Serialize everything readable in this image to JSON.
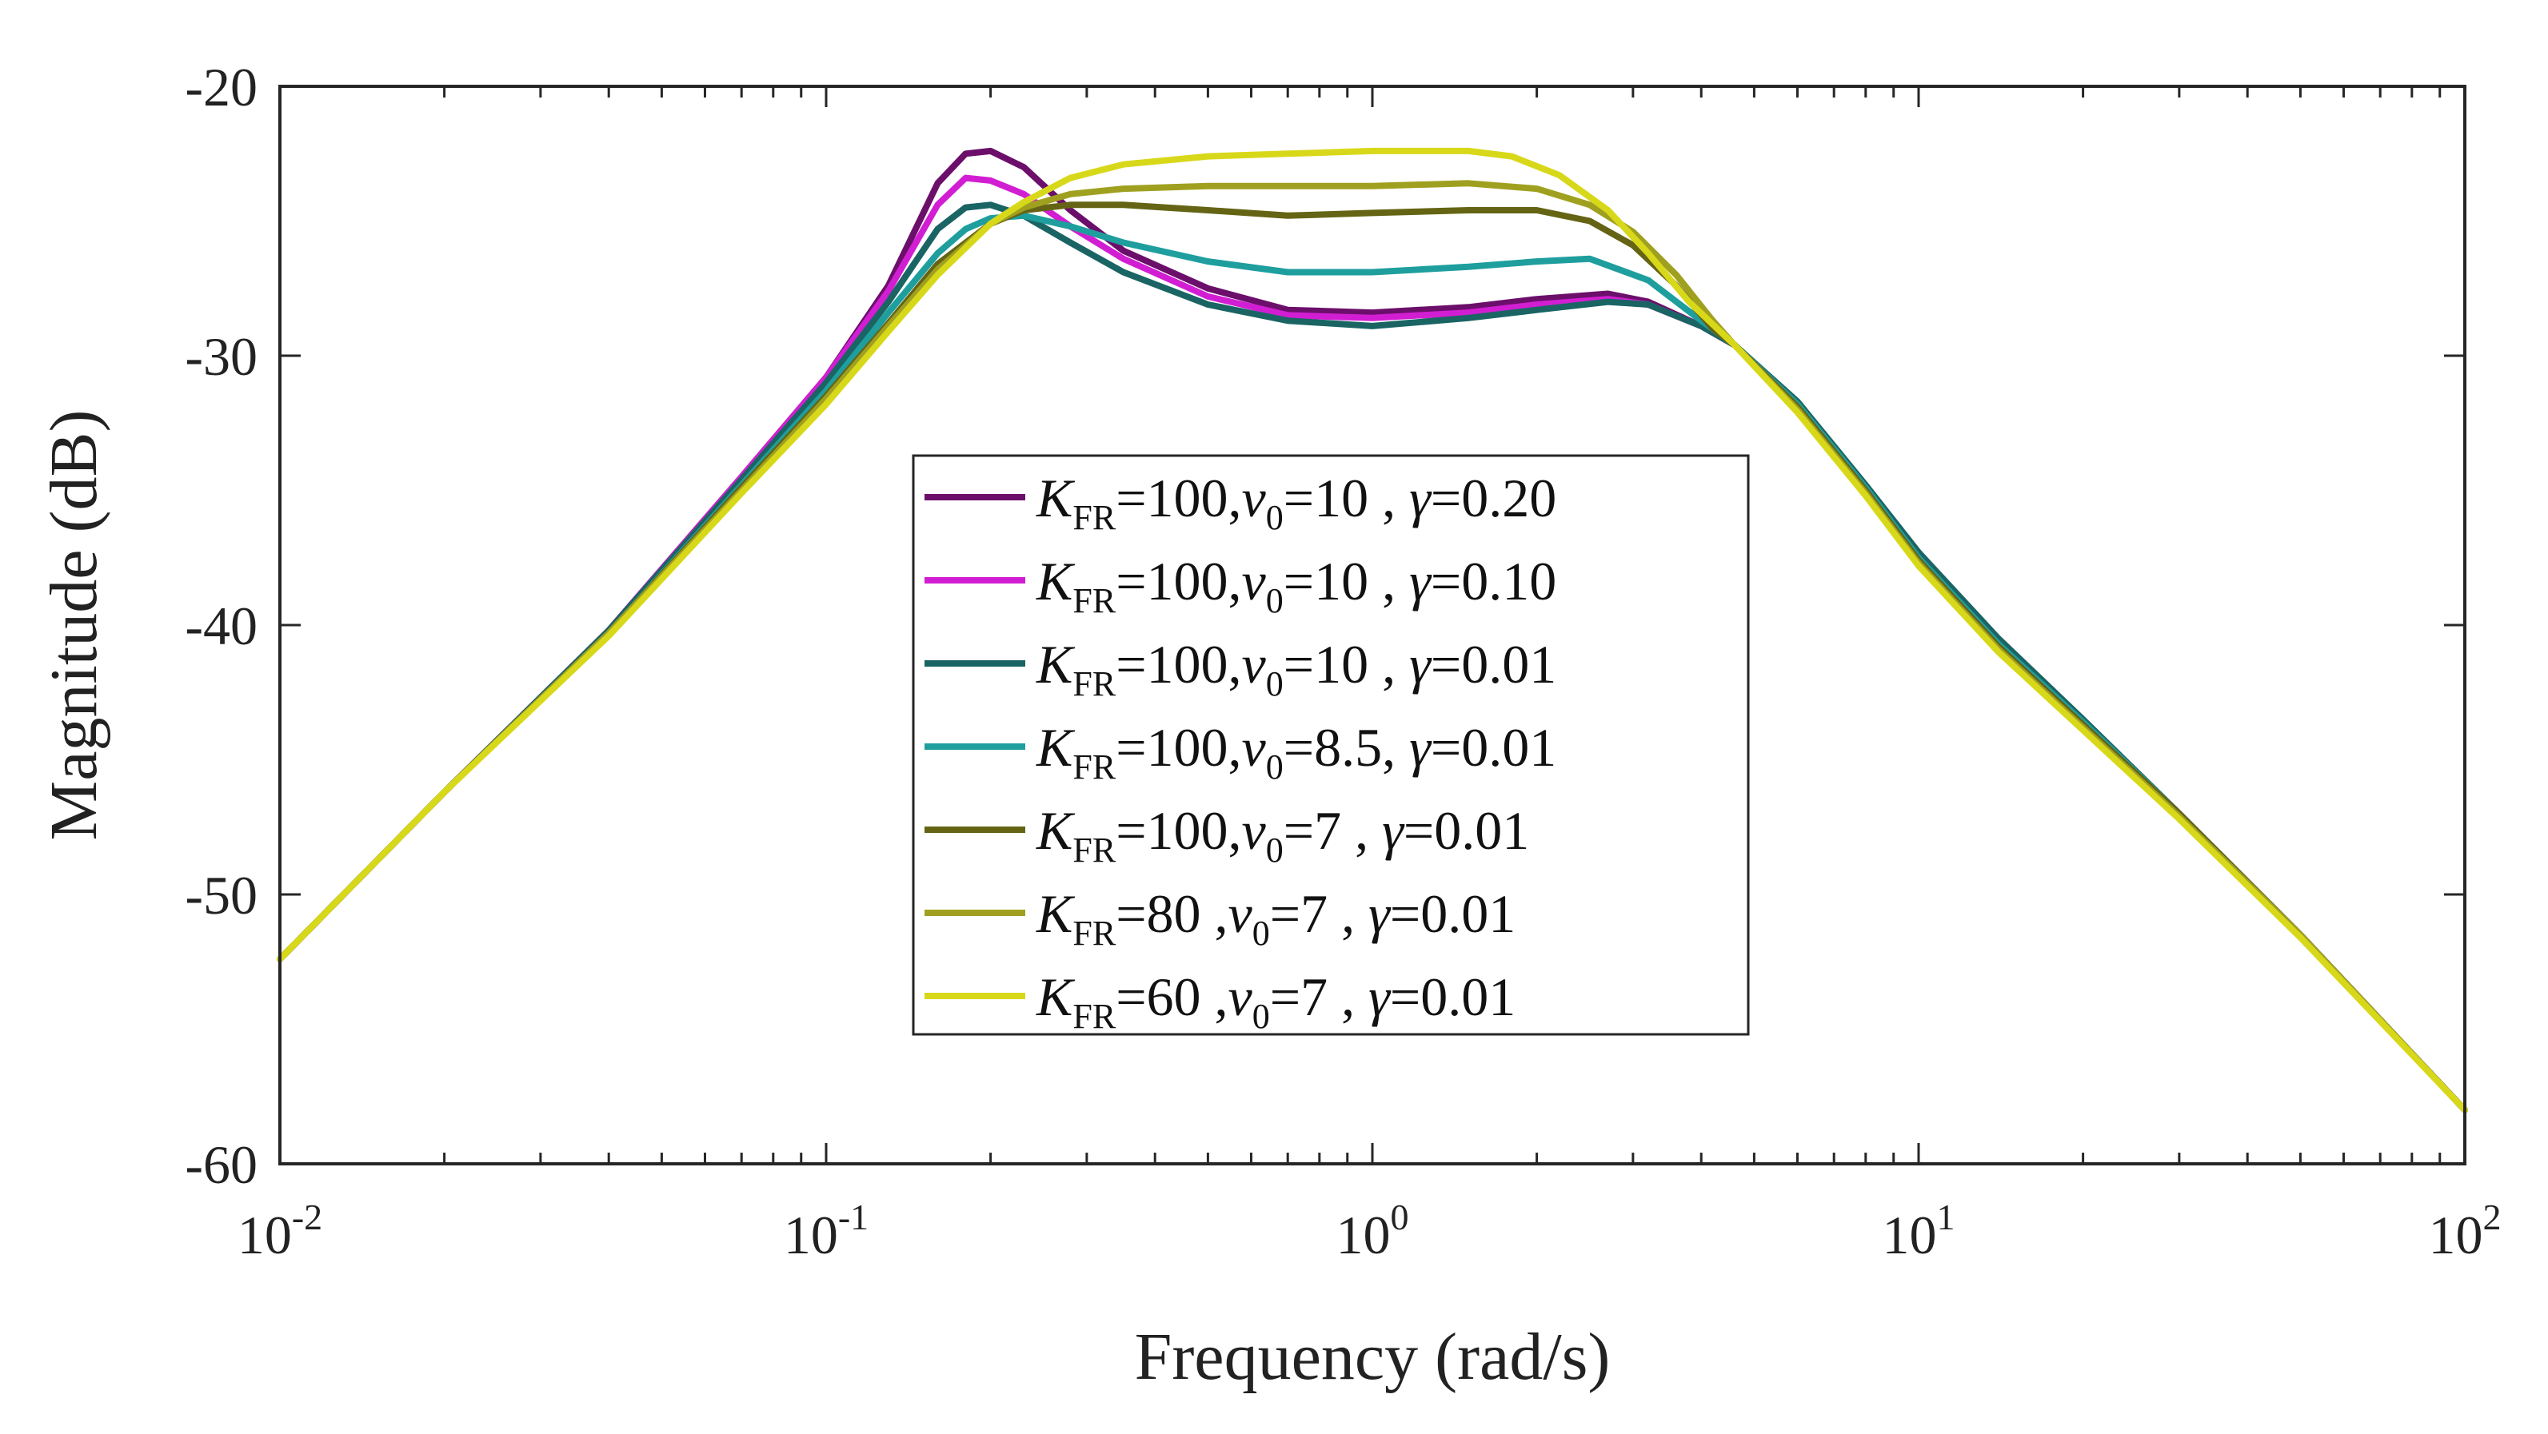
{
  "chart_data": {
    "type": "line",
    "xscale": "log",
    "xlabel": "Frequency (rad/s)",
    "ylabel": "Magnitude (dB)",
    "xlim": [
      0.01,
      100
    ],
    "ylim": [
      -60,
      -20
    ],
    "x_ticks": [
      {
        "value": 0.01,
        "base": "10",
        "exp": "-2"
      },
      {
        "value": 0.1,
        "base": "10",
        "exp": "-1"
      },
      {
        "value": 1,
        "base": "10",
        "exp": "0"
      },
      {
        "value": 10,
        "base": "10",
        "exp": "1"
      },
      {
        "value": 100,
        "base": "10",
        "exp": "2"
      }
    ],
    "y_ticks": [
      {
        "value": -20,
        "label": "-20"
      },
      {
        "value": -30,
        "label": "-30"
      },
      {
        "value": -40,
        "label": "-40"
      },
      {
        "value": -50,
        "label": "-50"
      },
      {
        "value": -60,
        "label": "-60"
      }
    ],
    "legend_position": "center",
    "series": [
      {
        "name": "KFR=100,v0=10 , γ=0.20",
        "color": "#6b0f6b",
        "legend": {
          "k": "K",
          "kSub": "FR",
          "kVal": "=100,",
          "v": "v",
          "vSub": "0",
          "vVal": "=10 , ",
          "g": "γ",
          "gVal": "=0.20"
        },
        "points": [
          [
            0.01,
            -52.4
          ],
          [
            0.02,
            -46.2
          ],
          [
            0.04,
            -40.2
          ],
          [
            0.07,
            -34.5
          ],
          [
            0.1,
            -30.8
          ],
          [
            0.13,
            -27.4
          ],
          [
            0.16,
            -23.6
          ],
          [
            0.18,
            -22.5
          ],
          [
            0.2,
            -22.4
          ],
          [
            0.23,
            -23.0
          ],
          [
            0.28,
            -24.6
          ],
          [
            0.35,
            -26.1
          ],
          [
            0.5,
            -27.5
          ],
          [
            0.7,
            -28.3
          ],
          [
            1,
            -28.4
          ],
          [
            1.5,
            -28.2
          ],
          [
            2,
            -27.9
          ],
          [
            2.7,
            -27.7
          ],
          [
            3.2,
            -28.0
          ],
          [
            4,
            -28.9
          ],
          [
            4.6,
            -29.6
          ],
          [
            6,
            -31.8
          ],
          [
            8,
            -34.9
          ],
          [
            10,
            -37.5
          ],
          [
            14,
            -40.7
          ],
          [
            20,
            -43.6
          ],
          [
            30,
            -47.0
          ],
          [
            50,
            -51.5
          ],
          [
            100,
            -58.0
          ]
        ]
      },
      {
        "name": "KFR=100,v0=10 , γ=0.10",
        "color": "#d21ed2",
        "legend": {
          "k": "K",
          "kSub": "FR",
          "kVal": "=100,",
          "v": "v",
          "vSub": "0",
          "vVal": "=10 , ",
          "g": "γ",
          "gVal": "=0.10"
        },
        "points": [
          [
            0.01,
            -52.4
          ],
          [
            0.02,
            -46.2
          ],
          [
            0.04,
            -40.2
          ],
          [
            0.07,
            -34.5
          ],
          [
            0.1,
            -30.8
          ],
          [
            0.13,
            -27.6
          ],
          [
            0.16,
            -24.4
          ],
          [
            0.18,
            -23.4
          ],
          [
            0.2,
            -23.5
          ],
          [
            0.23,
            -24.0
          ],
          [
            0.28,
            -25.2
          ],
          [
            0.35,
            -26.4
          ],
          [
            0.5,
            -27.8
          ],
          [
            0.7,
            -28.5
          ],
          [
            1,
            -28.6
          ],
          [
            1.5,
            -28.4
          ],
          [
            2,
            -28.1
          ],
          [
            2.7,
            -27.9
          ],
          [
            3.2,
            -28.1
          ],
          [
            4,
            -28.9
          ],
          [
            4.6,
            -29.6
          ],
          [
            6,
            -31.8
          ],
          [
            8,
            -34.9
          ],
          [
            10,
            -37.5
          ],
          [
            14,
            -40.7
          ],
          [
            20,
            -43.6
          ],
          [
            30,
            -47.0
          ],
          [
            50,
            -51.5
          ],
          [
            100,
            -58.0
          ]
        ]
      },
      {
        "name": "KFR=100,v0=10 , γ=0.01",
        "color": "#1a6464",
        "legend": {
          "k": "K",
          "kSub": "FR",
          "kVal": "=100,",
          "v": "v",
          "vSub": "0",
          "vVal": "=10 , ",
          "g": "γ",
          "gVal": "=0.01"
        },
        "points": [
          [
            0.01,
            -52.4
          ],
          [
            0.02,
            -46.2
          ],
          [
            0.04,
            -40.2
          ],
          [
            0.07,
            -34.6
          ],
          [
            0.1,
            -31.0
          ],
          [
            0.13,
            -28.0
          ],
          [
            0.16,
            -25.3
          ],
          [
            0.18,
            -24.5
          ],
          [
            0.2,
            -24.4
          ],
          [
            0.23,
            -24.8
          ],
          [
            0.28,
            -25.8
          ],
          [
            0.35,
            -26.9
          ],
          [
            0.5,
            -28.1
          ],
          [
            0.7,
            -28.7
          ],
          [
            1,
            -28.9
          ],
          [
            1.5,
            -28.6
          ],
          [
            2,
            -28.3
          ],
          [
            2.7,
            -28.0
          ],
          [
            3.2,
            -28.1
          ],
          [
            4,
            -28.9
          ],
          [
            4.6,
            -29.6
          ],
          [
            6,
            -31.7
          ],
          [
            8,
            -34.8
          ],
          [
            10,
            -37.3
          ],
          [
            14,
            -40.5
          ],
          [
            20,
            -43.5
          ],
          [
            30,
            -47.0
          ],
          [
            50,
            -51.5
          ],
          [
            100,
            -58.0
          ]
        ]
      },
      {
        "name": "KFR=100,v0=8.5, γ=0.01",
        "color": "#1f9e9e",
        "legend": {
          "k": "K",
          "kSub": "FR",
          "kVal": "=100,",
          "v": "v",
          "vSub": "0",
          "vVal": "=8.5, ",
          "g": "γ",
          "gVal": "=0.01"
        },
        "points": [
          [
            0.01,
            -52.4
          ],
          [
            0.02,
            -46.2
          ],
          [
            0.04,
            -40.3
          ],
          [
            0.07,
            -34.8
          ],
          [
            0.1,
            -31.3
          ],
          [
            0.13,
            -28.4
          ],
          [
            0.16,
            -26.2
          ],
          [
            0.18,
            -25.3
          ],
          [
            0.2,
            -24.9
          ],
          [
            0.23,
            -24.8
          ],
          [
            0.28,
            -25.2
          ],
          [
            0.35,
            -25.8
          ],
          [
            0.5,
            -26.5
          ],
          [
            0.7,
            -26.9
          ],
          [
            1,
            -26.9
          ],
          [
            1.5,
            -26.7
          ],
          [
            2,
            -26.5
          ],
          [
            2.5,
            -26.4
          ],
          [
            3.2,
            -27.2
          ],
          [
            4,
            -28.7
          ],
          [
            4.6,
            -29.6
          ],
          [
            6,
            -31.8
          ],
          [
            8,
            -34.9
          ],
          [
            10,
            -37.5
          ],
          [
            14,
            -40.7
          ],
          [
            20,
            -43.6
          ],
          [
            30,
            -47.0
          ],
          [
            50,
            -51.5
          ],
          [
            100,
            -58.0
          ]
        ]
      },
      {
        "name": "KFR=100,v0=7 , γ=0.01",
        "color": "#646414",
        "legend": {
          "k": "K",
          "kSub": "FR",
          "kVal": "=100,",
          "v": "v",
          "vSub": "0",
          "vVal": "=7   , ",
          "g": "γ",
          "gVal": "=0.01"
        },
        "points": [
          [
            0.01,
            -52.4
          ],
          [
            0.02,
            -46.2
          ],
          [
            0.04,
            -40.3
          ],
          [
            0.07,
            -34.9
          ],
          [
            0.1,
            -31.5
          ],
          [
            0.13,
            -28.8
          ],
          [
            0.16,
            -26.6
          ],
          [
            0.2,
            -25.1
          ],
          [
            0.23,
            -24.6
          ],
          [
            0.28,
            -24.4
          ],
          [
            0.35,
            -24.4
          ],
          [
            0.5,
            -24.6
          ],
          [
            0.7,
            -24.8
          ],
          [
            1,
            -24.7
          ],
          [
            1.5,
            -24.6
          ],
          [
            2,
            -24.6
          ],
          [
            2.5,
            -25.0
          ],
          [
            3,
            -25.9
          ],
          [
            3.6,
            -27.4
          ],
          [
            4.2,
            -29.0
          ],
          [
            4.6,
            -29.6
          ],
          [
            6,
            -31.9
          ],
          [
            8,
            -35.0
          ],
          [
            10,
            -37.6
          ],
          [
            14,
            -40.8
          ],
          [
            20,
            -43.7
          ],
          [
            30,
            -47.0
          ],
          [
            50,
            -51.5
          ],
          [
            100,
            -58.0
          ]
        ]
      },
      {
        "name": "KFR=80 ,v0=7 , γ=0.01",
        "color": "#a0a020",
        "legend": {
          "k": "K",
          "kSub": "FR",
          "kVal": "=80  ,",
          "v": "v",
          "vSub": "0",
          "vVal": "=7   , ",
          "g": "γ",
          "gVal": "=0.01"
        },
        "points": [
          [
            0.01,
            -52.4
          ],
          [
            0.02,
            -46.2
          ],
          [
            0.04,
            -40.3
          ],
          [
            0.07,
            -35.0
          ],
          [
            0.1,
            -31.6
          ],
          [
            0.13,
            -28.9
          ],
          [
            0.16,
            -26.8
          ],
          [
            0.2,
            -25.1
          ],
          [
            0.23,
            -24.5
          ],
          [
            0.28,
            -24.0
          ],
          [
            0.35,
            -23.8
          ],
          [
            0.5,
            -23.7
          ],
          [
            0.7,
            -23.7
          ],
          [
            1,
            -23.7
          ],
          [
            1.5,
            -23.6
          ],
          [
            2,
            -23.8
          ],
          [
            2.5,
            -24.4
          ],
          [
            3,
            -25.4
          ],
          [
            3.6,
            -27.0
          ],
          [
            4.2,
            -28.7
          ],
          [
            4.6,
            -29.6
          ],
          [
            6,
            -32.0
          ],
          [
            8,
            -35.1
          ],
          [
            10,
            -37.7
          ],
          [
            14,
            -40.9
          ],
          [
            20,
            -43.8
          ],
          [
            30,
            -47.1
          ],
          [
            50,
            -51.5
          ],
          [
            100,
            -58.0
          ]
        ]
      },
      {
        "name": "KFR=60 ,v0=7 , γ=0.01",
        "color": "#d8d81a",
        "legend": {
          "k": "K",
          "kSub": "FR",
          "kVal": "=60  ,",
          "v": "v",
          "vSub": "0",
          "vVal": "=7   , ",
          "g": "γ",
          "gVal": "=0.01"
        },
        "points": [
          [
            0.01,
            -52.4
          ],
          [
            0.02,
            -46.2
          ],
          [
            0.04,
            -40.4
          ],
          [
            0.07,
            -35.1
          ],
          [
            0.1,
            -31.8
          ],
          [
            0.13,
            -29.1
          ],
          [
            0.16,
            -27.0
          ],
          [
            0.2,
            -25.1
          ],
          [
            0.23,
            -24.3
          ],
          [
            0.28,
            -23.4
          ],
          [
            0.35,
            -22.9
          ],
          [
            0.5,
            -22.6
          ],
          [
            0.7,
            -22.5
          ],
          [
            1,
            -22.4
          ],
          [
            1.5,
            -22.4
          ],
          [
            1.8,
            -22.6
          ],
          [
            2.2,
            -23.3
          ],
          [
            2.7,
            -24.6
          ],
          [
            3.2,
            -26.2
          ],
          [
            3.8,
            -28.0
          ],
          [
            4.6,
            -29.6
          ],
          [
            6,
            -32.1
          ],
          [
            8,
            -35.2
          ],
          [
            10,
            -37.8
          ],
          [
            14,
            -41.0
          ],
          [
            20,
            -43.9
          ],
          [
            30,
            -47.2
          ],
          [
            50,
            -51.6
          ],
          [
            100,
            -58.0
          ]
        ]
      }
    ]
  }
}
